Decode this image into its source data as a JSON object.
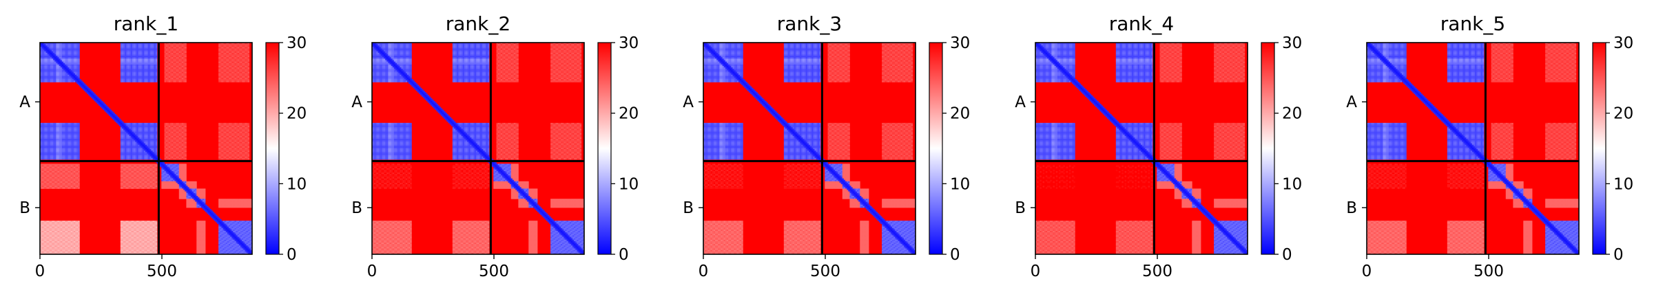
{
  "chart_data": {
    "type": "heatmap",
    "description_kind": "Predicted aligned error (PAE) matrices for a two-chain complex, one panel per model rank",
    "axis": {
      "xlim": [
        0,
        870
      ],
      "x_ticks": [
        0,
        500
      ],
      "x_tick_labels": [
        "0",
        "500"
      ],
      "chain_boundary": 487,
      "chains": [
        {
          "label": "A",
          "start": 0,
          "end": 487
        },
        {
          "label": "B",
          "start": 487,
          "end": 870
        }
      ]
    },
    "colorbar": {
      "min": 0,
      "max": 30,
      "ticks": [
        0,
        10,
        20,
        30
      ],
      "tick_labels": [
        "0",
        "10",
        "20",
        "30"
      ],
      "colormap": "bwr",
      "colors": {
        "low": "#0000ff",
        "mid": "#ffffff",
        "high": "#ff0000"
      }
    },
    "panels": [
      {
        "title": "rank_1",
        "bottom_left_offdiag_error": 24
      },
      {
        "title": "rank_2",
        "bottom_left_offdiag_error": 28
      },
      {
        "title": "rank_3",
        "bottom_left_offdiag_error": 28
      },
      {
        "title": "rank_4",
        "bottom_left_offdiag_error": 29
      },
      {
        "title": "rank_5",
        "bottom_left_offdiag_error": 28
      }
    ],
    "domains": {
      "chain_a": [
        [
          0,
          160
        ],
        [
          330,
          480
        ]
      ],
      "chain_b": [
        [
          500,
          570
        ],
        [
          570,
          600
        ],
        [
          600,
          640
        ],
        [
          640,
          680
        ],
        [
          730,
          870
        ]
      ]
    }
  }
}
